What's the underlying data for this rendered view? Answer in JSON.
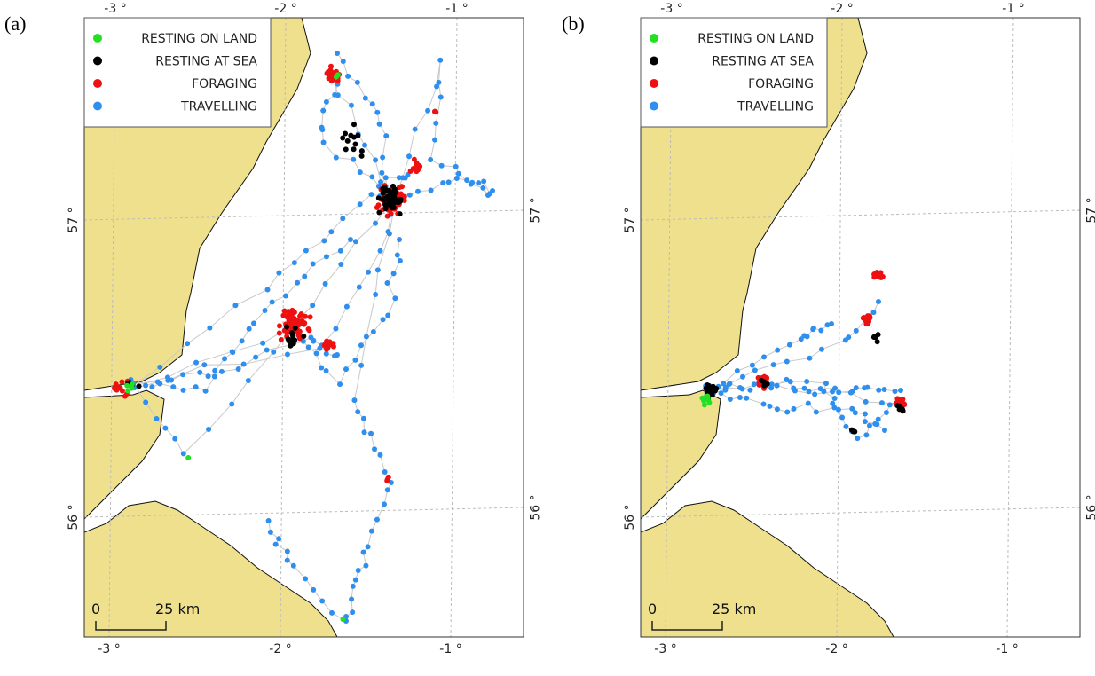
{
  "panels": [
    {
      "label": "(a)",
      "legend": [
        {
          "label": "RESTING ON LAND",
          "color": "#22e022"
        },
        {
          "label": "RESTING AT SEA",
          "color": "#000000"
        },
        {
          "label": "FORAGING",
          "color": "#ee1111"
        },
        {
          "label": "TRAVELLING",
          "color": "#2f8fef"
        }
      ],
      "lon_labels": [
        "-3 °",
        "-2 °",
        "-1 °"
      ],
      "lat_labels": [
        "57 °",
        "56 °"
      ],
      "scale_bar": {
        "start": "0",
        "end": "25 km"
      }
    },
    {
      "label": "(b)",
      "legend": [
        {
          "label": "RESTING ON LAND",
          "color": "#22e022"
        },
        {
          "label": "RESTING AT SEA",
          "color": "#000000"
        },
        {
          "label": "FORAGING",
          "color": "#ee1111"
        },
        {
          "label": "TRAVELLING",
          "color": "#2f8fef"
        }
      ],
      "lon_labels": [
        "-3 °",
        "-2 °",
        "-1 °"
      ],
      "lat_labels": [
        "57 °",
        "56 °"
      ],
      "scale_bar": {
        "start": "0",
        "end": "25 km"
      }
    }
  ]
}
